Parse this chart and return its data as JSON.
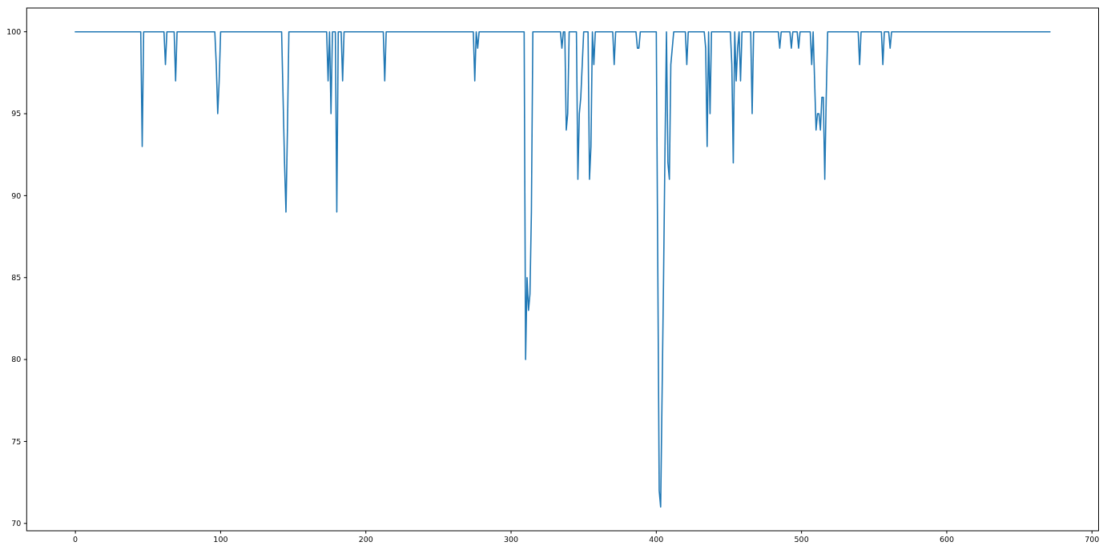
{
  "chart_data": {
    "type": "line",
    "x": [
      0,
      45,
      46,
      47,
      61,
      62,
      63,
      68,
      69,
      70,
      96,
      97,
      98,
      99,
      100,
      142,
      143,
      144,
      145,
      146,
      147,
      173,
      174,
      175,
      176,
      177,
      179,
      180,
      181,
      183,
      184,
      185,
      212,
      213,
      214,
      274,
      275,
      276,
      277,
      278,
      309,
      310,
      311,
      312,
      313,
      314,
      315,
      334,
      335,
      336,
      337,
      338,
      339,
      340,
      345,
      346,
      347,
      348,
      349,
      350,
      353,
      354,
      355,
      356,
      357,
      358,
      370,
      371,
      372,
      386,
      387,
      388,
      389,
      400,
      401,
      402,
      403,
      404,
      405,
      406,
      407,
      408,
      409,
      410,
      411,
      412,
      420,
      421,
      422,
      433,
      434,
      435,
      436,
      437,
      438,
      451,
      452,
      453,
      454,
      455,
      456,
      457,
      458,
      459,
      465,
      466,
      467,
      484,
      485,
      486,
      492,
      493,
      494,
      497,
      498,
      499,
      506,
      507,
      508,
      509,
      510,
      511,
      512,
      513,
      514,
      515,
      516,
      517,
      518,
      539,
      540,
      541,
      555,
      556,
      557,
      560,
      561,
      562,
      671
    ],
    "series": [
      {
        "color": "#1f77b4",
        "values": [
          100,
          100,
          93,
          100,
          100,
          98,
          100,
          100,
          97,
          100,
          100,
          98,
          95,
          97,
          100,
          100,
          96,
          92,
          89,
          94,
          100,
          100,
          97,
          100,
          95,
          100,
          100,
          89,
          100,
          100,
          97,
          100,
          100,
          97,
          100,
          100,
          97,
          100,
          99,
          100,
          100,
          80,
          85,
          83,
          84,
          89,
          100,
          100,
          99,
          100,
          100,
          94,
          95,
          100,
          100,
          91,
          95,
          96,
          98,
          100,
          100,
          91,
          93,
          100,
          98,
          100,
          100,
          98,
          100,
          100,
          99,
          99,
          100,
          100,
          86,
          72,
          71,
          78,
          85,
          93,
          100,
          92,
          91,
          98,
          99,
          100,
          100,
          98,
          100,
          100,
          99,
          93,
          100,
          95,
          100,
          100,
          98,
          92,
          100,
          97,
          99,
          100,
          97,
          100,
          100,
          95,
          100,
          100,
          99,
          100,
          100,
          99,
          100,
          100,
          99,
          100,
          100,
          98,
          100,
          97,
          94,
          95,
          95,
          94,
          96,
          96,
          91,
          96,
          100,
          100,
          98,
          100,
          100,
          98,
          100,
          100,
          99,
          100,
          100
        ]
      }
    ],
    "xlim": [
      -33.55,
      704.55
    ],
    "ylim": [
      69.55,
      101.45
    ],
    "xticks": [
      0,
      100,
      200,
      300,
      400,
      500,
      600,
      700
    ],
    "yticks": [
      70,
      75,
      80,
      85,
      90,
      95,
      100
    ],
    "line_style": "solid"
  }
}
